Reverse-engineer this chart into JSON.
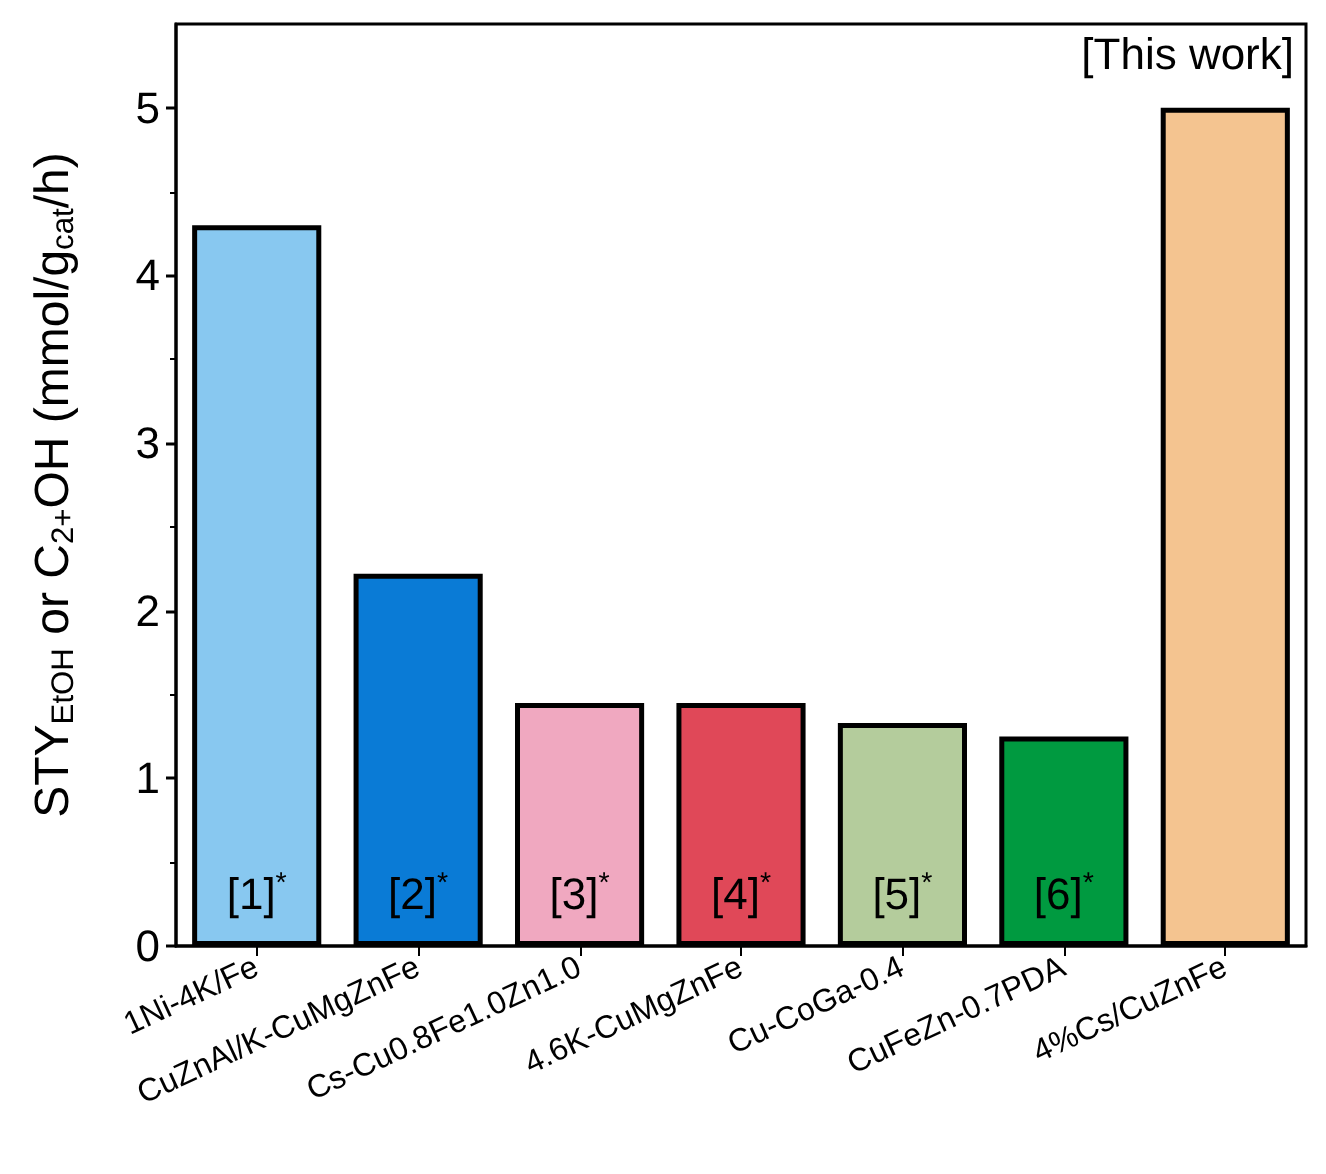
{
  "chart_data": {
    "type": "bar",
    "ylabel": "STY$_{EtOH}$ or C$_{2+}$OH (mmol/g$_{cat}$/h)",
    "categories": [
      "1Ni-4K/Fe",
      "CuZnAl/K-CuMgZnFe",
      "Cs-Cu0.8Fe1.0Zn1.0",
      "4.6K-CuMgZnFe",
      "Cu-CoGa-0.4",
      "CuFeZn-0.7PDA",
      "4%Cs/CuZnFe"
    ],
    "values": [
      4.3,
      2.22,
      1.45,
      1.45,
      1.33,
      1.25,
      5.0
    ],
    "colors": [
      "#88c8f0",
      "#0a7bd6",
      "#f0a8c0",
      "#e04858",
      "#b4cc9c",
      "#009a40",
      "#f4c490"
    ],
    "ylim": [
      0,
      5.5
    ],
    "yticks": [
      0,
      1,
      2,
      3,
      4,
      5
    ],
    "grid": false,
    "annotations": [
      "[This work]",
      "[1]$^{*}$",
      "[2]$^{*}$",
      "[3]$^{*}$",
      "[4]$^{*}$",
      "[5]$^{*}$",
      "[6]$^{*}$"
    ]
  }
}
